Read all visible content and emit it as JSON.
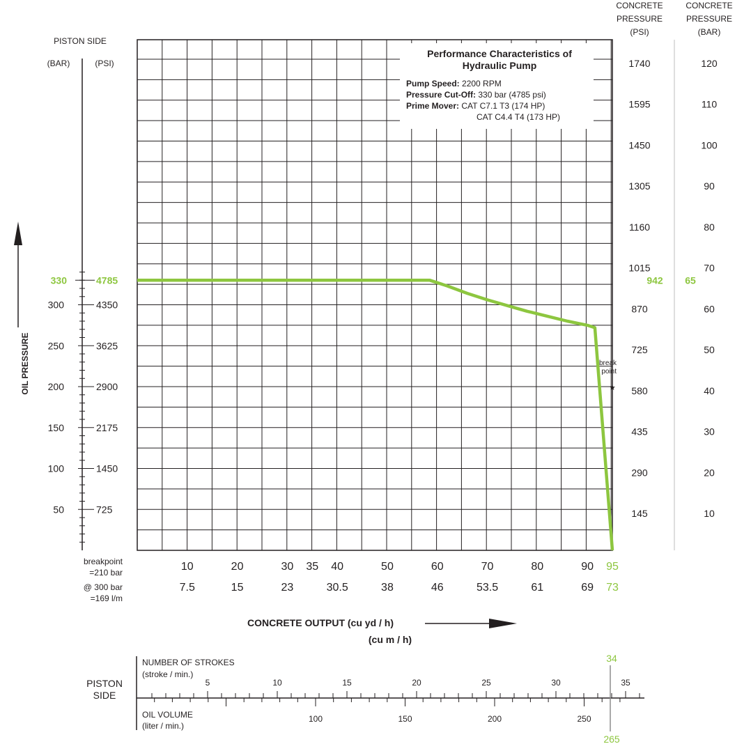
{
  "chart_data": {
    "type": "line",
    "series_color": "#8dc63f",
    "grid": true,
    "x_output_cuyd": [
      0,
      58.5,
      62,
      66,
      70,
      74,
      78,
      82,
      86,
      90,
      91.5,
      95
    ],
    "y_pressure_bar": [
      330,
      330,
      323,
      314,
      306,
      299,
      292,
      286,
      280,
      275,
      272,
      0
    ],
    "xlim": [
      0,
      95
    ],
    "ylim": [
      0,
      355
    ],
    "x_ticks_cuyd": [
      "10",
      "20",
      "30",
      "35",
      "40",
      "50",
      "60",
      "70",
      "80",
      "90"
    ],
    "x_ticks_cum": [
      "7.5",
      "15",
      "23",
      "30.5",
      "38",
      "46",
      "53.5",
      "61",
      "69"
    ],
    "x_max_cuyd": "95",
    "x_max_cum": "73",
    "y_left_header": "PISTON SIDE",
    "y_left_bar_unit": "(BAR)",
    "y_left_psi_unit": "(PSI)",
    "y_left_bar_ticks": [
      "50",
      "100",
      "150",
      "200",
      "250",
      "300"
    ],
    "y_left_psi_ticks": [
      "725",
      "1450",
      "2175",
      "2900",
      "3625",
      "4350"
    ],
    "max_bar": "330",
    "max_psi": "4785",
    "y_axis_title": "OIL PRESSURE",
    "x_axis_title": "CONCRETE OUTPUT (cu yd / h)",
    "x_axis_title_2": "(cu m / h)",
    "right_psi_header": [
      "CONCRETE",
      "PRESSURE",
      "(PSI)"
    ],
    "right_bar_header": [
      "CONCRETE",
      "PRESSURE",
      "(BAR)"
    ],
    "right_psi_ticks": [
      "145",
      "290",
      "435",
      "580",
      "725",
      "870",
      "1015",
      "1160",
      "1305",
      "1450",
      "1595",
      "1740"
    ],
    "right_bar_ticks": [
      "10",
      "20",
      "30",
      "40",
      "50",
      "60",
      "70",
      "80",
      "90",
      "100",
      "110",
      "120"
    ],
    "max_concrete_psi": "942",
    "max_concrete_bar": "65",
    "breakpoint_label": [
      "break",
      "point"
    ],
    "breakpoint_note": [
      "breakpoint",
      "=210 bar",
      "@ 300 bar",
      "=169 l/m"
    ],
    "info_title": [
      "Performance Characteristics of",
      "Hydraulic Pump"
    ],
    "info_lines": [
      {
        "label": "Pump Speed:",
        "value": "2200 RPM"
      },
      {
        "label": "Pressure Cut-Off:",
        "value": "330 bar (4785 psi)"
      },
      {
        "label": "Prime Mover:",
        "value": "CAT C7.1 T3 (174 HP)"
      },
      {
        "label": "",
        "value": "CAT C4.4 T4  (173 HP)"
      }
    ],
    "strokes": {
      "side_label": [
        "PISTON",
        "SIDE"
      ],
      "strokes_title": "NUMBER OF STROKES",
      "strokes_unit": "(stroke / min.)",
      "stroke_ticks": [
        "5",
        "10",
        "15",
        "20",
        "25",
        "30",
        "35"
      ],
      "stroke_max": "34",
      "oil_title": "OIL VOLUME",
      "oil_unit": "(liter / min.)",
      "oil_ticks": [
        "100",
        "150",
        "200",
        "250"
      ],
      "oil_max": "265"
    }
  }
}
